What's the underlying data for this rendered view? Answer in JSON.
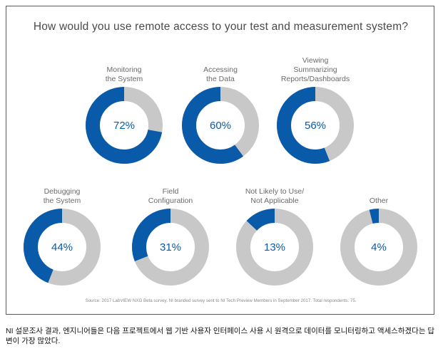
{
  "chart_data": {
    "type": "pie",
    "variant": "donut",
    "title": "How would you use remote access to your test and measurement system?",
    "colors": {
      "value": "#0a5aaa",
      "remainder": "#c8c8c8"
    },
    "items": [
      {
        "label_lines": [
          "Monitoring",
          "the System"
        ],
        "value": 72,
        "display": "72%"
      },
      {
        "label_lines": [
          "Accessing",
          "the Data"
        ],
        "value": 60,
        "display": "60%"
      },
      {
        "label_lines": [
          "Viewing",
          "Summarizing",
          "Reports/Dashboards"
        ],
        "value": 56,
        "display": "56%"
      },
      {
        "label_lines": [
          "Debugging",
          "the System"
        ],
        "value": 44,
        "display": "44%"
      },
      {
        "label_lines": [
          "Field",
          "Configuration"
        ],
        "value": 31,
        "display": "31%"
      },
      {
        "label_lines": [
          "Not Likely to Use/",
          "Not Applicable"
        ],
        "value": 13,
        "display": "13%"
      },
      {
        "label_lines": [
          "Other"
        ],
        "value": 4,
        "display": "4%"
      }
    ],
    "source": "Source:  2017 LabVIEW NXG Beta survey.  NI branded survey sent to NI Tech Preview Members in September 2017. Total respondents: 75."
  },
  "caption": "NI 설문조사 결과, 엔지니어들은 다음 프로젝트에서 웹 기반 사용자 인터페이스 사용 시 원격으로 데이터를 모니터링하고 액세스하겠다는 답변이 가장 많았다."
}
